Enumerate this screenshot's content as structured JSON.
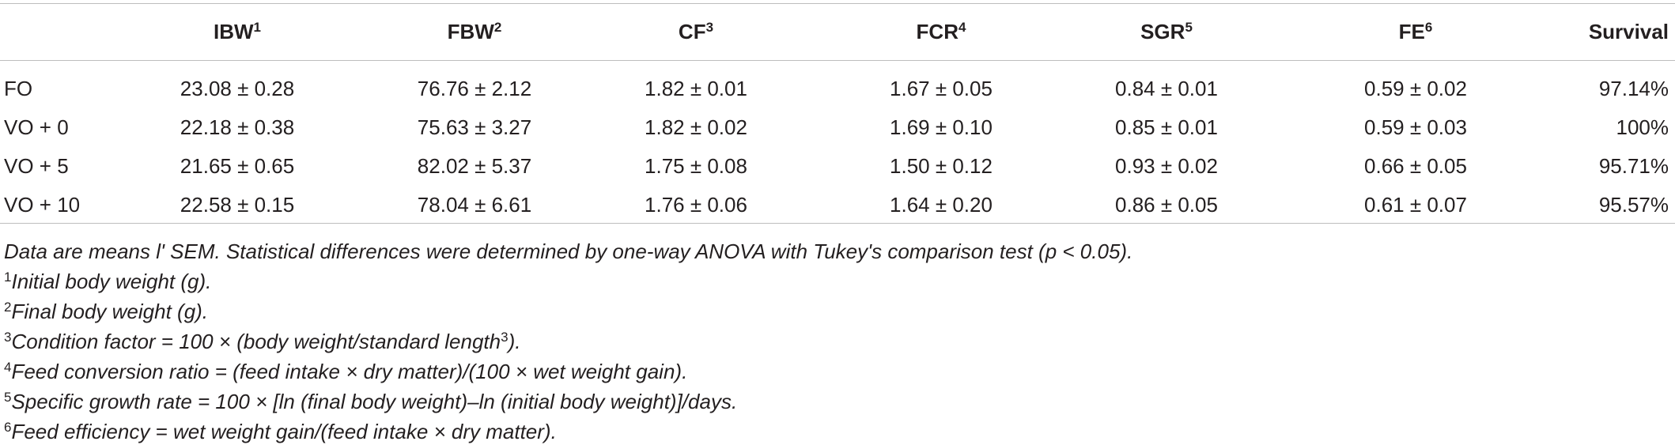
{
  "table": {
    "header": [
      {
        "text": "IBW",
        "sup": "1"
      },
      {
        "text": "FBW",
        "sup": "2"
      },
      {
        "text": "CF",
        "sup": "3"
      },
      {
        "text": "FCR",
        "sup": "4"
      },
      {
        "text": "SGR",
        "sup": "5"
      },
      {
        "text": "FE",
        "sup": "6"
      },
      {
        "text": "Survival"
      }
    ],
    "rows": [
      [
        "FO",
        "23.08 ± 0.28",
        "76.76 ± 2.12",
        "1.82 ± 0.01",
        "1.67 ± 0.05",
        "0.84 ± 0.01",
        "0.59 ± 0.02",
        "97.14%"
      ],
      [
        "VO + 0",
        "22.18 ± 0.38",
        "75.63 ± 3.27",
        "1.82 ± 0.02",
        "1.69 ± 0.10",
        "0.85 ± 0.01",
        "0.59 ± 0.03",
        "100%"
      ],
      [
        "VO + 5",
        "21.65 ± 0.65",
        "82.02 ± 5.37",
        "1.75 ± 0.08",
        "1.50 ± 0.12",
        "0.93 ± 0.02",
        "0.66 ± 0.05",
        "95.71%"
      ],
      [
        "VO + 10",
        "22.58 ± 0.15",
        "78.04 ± 6.61",
        "1.76 ± 0.06",
        "1.64 ± 0.20",
        "0.86 ± 0.05",
        "0.61 ± 0.07",
        "95.57%"
      ]
    ]
  },
  "notes": [
    {
      "text": "Data are means l' SEM. Statistical differences were determined by one-way ANOVA with Tukey's comparison test (p < 0.05)."
    },
    {
      "mark": "1",
      "text": "Initial body weight (g)."
    },
    {
      "mark": "2",
      "text": "Final body weight (g)."
    },
    {
      "mark": "3",
      "text": "Condition factor = 100 × (body weight/standard length",
      "sup": "3",
      "after": ")."
    },
    {
      "mark": "4",
      "text": "Feed conversion ratio = (feed intake × dry matter)/(100 × wet weight gain)."
    },
    {
      "mark": "5",
      "text": "Specific growth rate = 100 × [ln (final body weight)–ln (initial body weight)]/days."
    },
    {
      "mark": "6",
      "text": "Feed efficiency = wet weight gain/(feed intake × dry matter)."
    }
  ]
}
